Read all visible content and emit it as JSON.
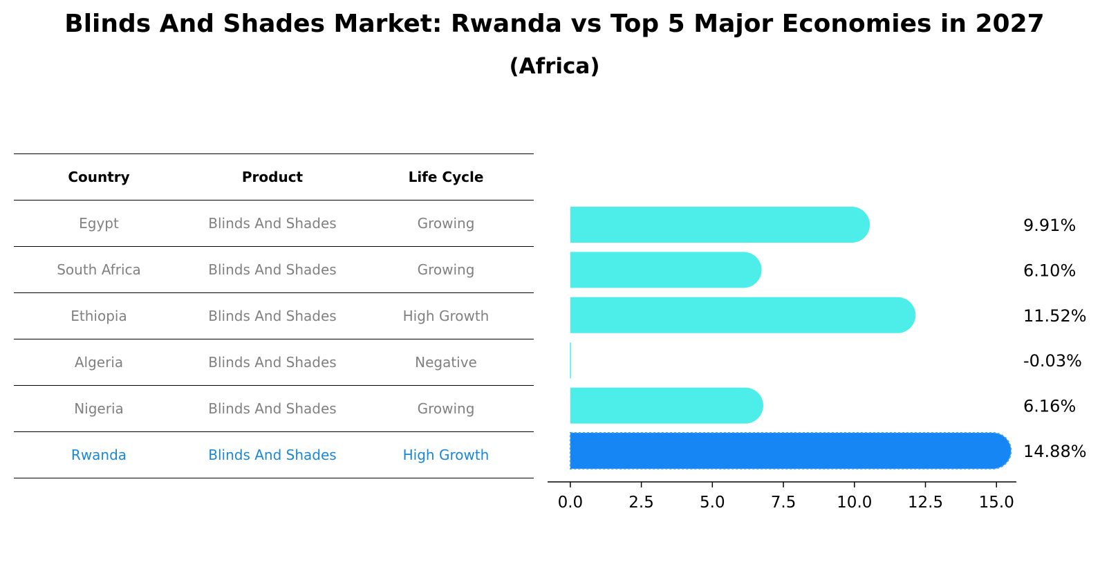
{
  "title": "Blinds And Shades Market: Rwanda vs Top 5 Major Economies in 2027",
  "subtitle": "(Africa)",
  "table": {
    "headers": [
      "Country",
      "Product",
      "Life Cycle"
    ],
    "rows": [
      [
        "Egypt",
        "Blinds And Shades",
        "Growing"
      ],
      [
        "South Africa",
        "Blinds And Shades",
        "Growing"
      ],
      [
        "Ethiopia",
        "Blinds And Shades",
        "High Growth"
      ],
      [
        "Algeria",
        "Blinds And Shades",
        "Negative"
      ],
      [
        "Nigeria",
        "Blinds And Shades",
        "Growing"
      ],
      [
        "Rwanda",
        "Blinds And Shades",
        "High Growth"
      ]
    ],
    "highlight_row": 5
  },
  "chart_data": {
    "type": "bar",
    "orientation": "horizontal",
    "categories": [
      "Egypt",
      "South Africa",
      "Ethiopia",
      "Algeria",
      "Nigeria",
      "Rwanda"
    ],
    "values": [
      9.91,
      6.1,
      11.52,
      -0.03,
      6.16,
      14.88
    ],
    "value_labels": [
      "9.91%",
      "6.10%",
      "11.52%",
      "-0.03%",
      "6.16%",
      "14.88%"
    ],
    "xlim": [
      -0.8,
      15.7
    ],
    "xticks": [
      0.0,
      2.5,
      5.0,
      7.5,
      10.0,
      12.5,
      15.0
    ],
    "xtick_labels": [
      "0.0",
      "2.5",
      "5.0",
      "7.5",
      "10.0",
      "12.5",
      "15.0"
    ],
    "colors": {
      "default": "#4deeea",
      "highlight": "#1786f5"
    },
    "highlight_index": 5,
    "title": "",
    "xlabel": "",
    "ylabel": ""
  }
}
